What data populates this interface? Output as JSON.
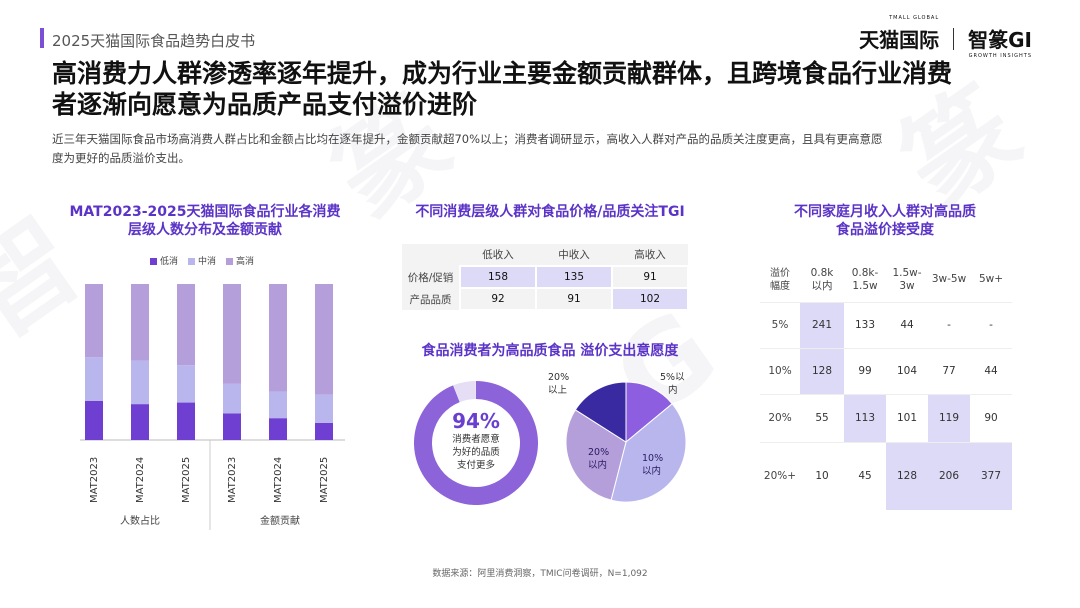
{
  "header": {
    "report_name": "2025天猫国际食品趋势白皮书",
    "brand_tmall": "天猫国际",
    "brand_tmall_small": "TMALL GLOBAL",
    "brand_gi": "智篆GI",
    "brand_gi_small": "GROWTH INSIGHTS"
  },
  "headline_line1": "高消费力人群渗透率逐年提升，成为行业主要金额贡献群体，且跨境食品行业消费",
  "headline_line2": "者逐渐向愿意为品质产品支付溢价进阶",
  "subtext_line1": "近三年天猫国际食品市场高消费人群占比和金额占比均在逐年提升，金额贡献超70%以上；消费者调研显示，高收入人群对产品的品质关注度更高，且具有更高意愿",
  "subtext_line2": "度为更好的品质溢价支出。",
  "source": "数据来源：阿里消费洞察，TMIC问卷调研，N=1,092",
  "colors": {
    "accent": "#5b34c7",
    "low": "#6e3fd1",
    "mid": "#b9b6ee",
    "high": "#b49fdb",
    "highlight": "#dcdaf6"
  },
  "chart_data": [
    {
      "type": "bar",
      "title_line1": "MAT2023-2025天猫国际食品行业各消费",
      "title_line2": "层级人数分布及金额贡献",
      "categories": [
        "MAT2023",
        "MAT2024",
        "MAT2025",
        "MAT2023",
        "MAT2024",
        "MAT2025"
      ],
      "groups": [
        "人数占比",
        "金额贡献"
      ],
      "stacked": true,
      "series": [
        {
          "name": "低消",
          "values": [
            25,
            23,
            24,
            17,
            14,
            11
          ]
        },
        {
          "name": "中消",
          "values": [
            28,
            28,
            24,
            19,
            17,
            18
          ]
        },
        {
          "name": "高消",
          "values": [
            47,
            49,
            52,
            64,
            69,
            71
          ]
        }
      ],
      "ylim": [
        0,
        100
      ]
    },
    {
      "type": "table",
      "title": "不同消费层级人群对食品价格/品质关注TGI",
      "columns": [
        "",
        "低收入",
        "中收入",
        "高收入"
      ],
      "rows": [
        {
          "label": "价格/促销",
          "values": [
            "158",
            "135",
            "91"
          ],
          "highlight": [
            true,
            true,
            false
          ]
        },
        {
          "label": "产品品质",
          "values": [
            "92",
            "91",
            "102"
          ],
          "highlight": [
            false,
            false,
            true
          ]
        }
      ]
    },
    {
      "type": "pie",
      "title": "食品消费者为高品质食品 溢价支出意愿度",
      "donut": {
        "slices": [
          {
            "label": "愿意",
            "value": 94
          },
          {
            "label": "不愿意",
            "value": 6
          }
        ],
        "center_pct": "94%",
        "center_text_lines": [
          "消费者愿意",
          "为好的品质",
          "支付更多"
        ]
      },
      "pie": {
        "slices": [
          {
            "label_lines": [
              "5%以",
              "内"
            ],
            "value": 14
          },
          {
            "label_lines": [
              "10%",
              "以内"
            ],
            "value": 40
          },
          {
            "label_lines": [
              "20%",
              "以内"
            ],
            "value": 30
          },
          {
            "label_lines": [
              "20%",
              "以上"
            ],
            "value": 16
          }
        ]
      }
    },
    {
      "type": "heatmap",
      "title_line1": "不同家庭月收入人群对高品质",
      "title_line2": "食品溢价接受度",
      "corner_lines": [
        "溢价",
        "幅度"
      ],
      "columns": [
        [
          "0.8k",
          "以内"
        ],
        [
          "0.8k-",
          "1.5w"
        ],
        [
          "1.5w-",
          "3w"
        ],
        [
          "3w-5w"
        ],
        [
          "5w+"
        ]
      ],
      "rows": [
        {
          "label": "5%",
          "values": [
            "241",
            "133",
            "44",
            "-",
            "-"
          ],
          "highlight": [
            true,
            false,
            false,
            false,
            false
          ]
        },
        {
          "label": "10%",
          "values": [
            "128",
            "99",
            "104",
            "77",
            "44"
          ],
          "highlight": [
            true,
            false,
            false,
            false,
            false
          ]
        },
        {
          "label": "20%",
          "values": [
            "55",
            "113",
            "101",
            "119",
            "90"
          ],
          "highlight": [
            false,
            true,
            false,
            true,
            false
          ]
        },
        {
          "label": "20%+",
          "values": [
            "10",
            "45",
            "128",
            "206",
            "377"
          ],
          "highlight": [
            false,
            false,
            true,
            true,
            true
          ]
        }
      ]
    }
  ]
}
